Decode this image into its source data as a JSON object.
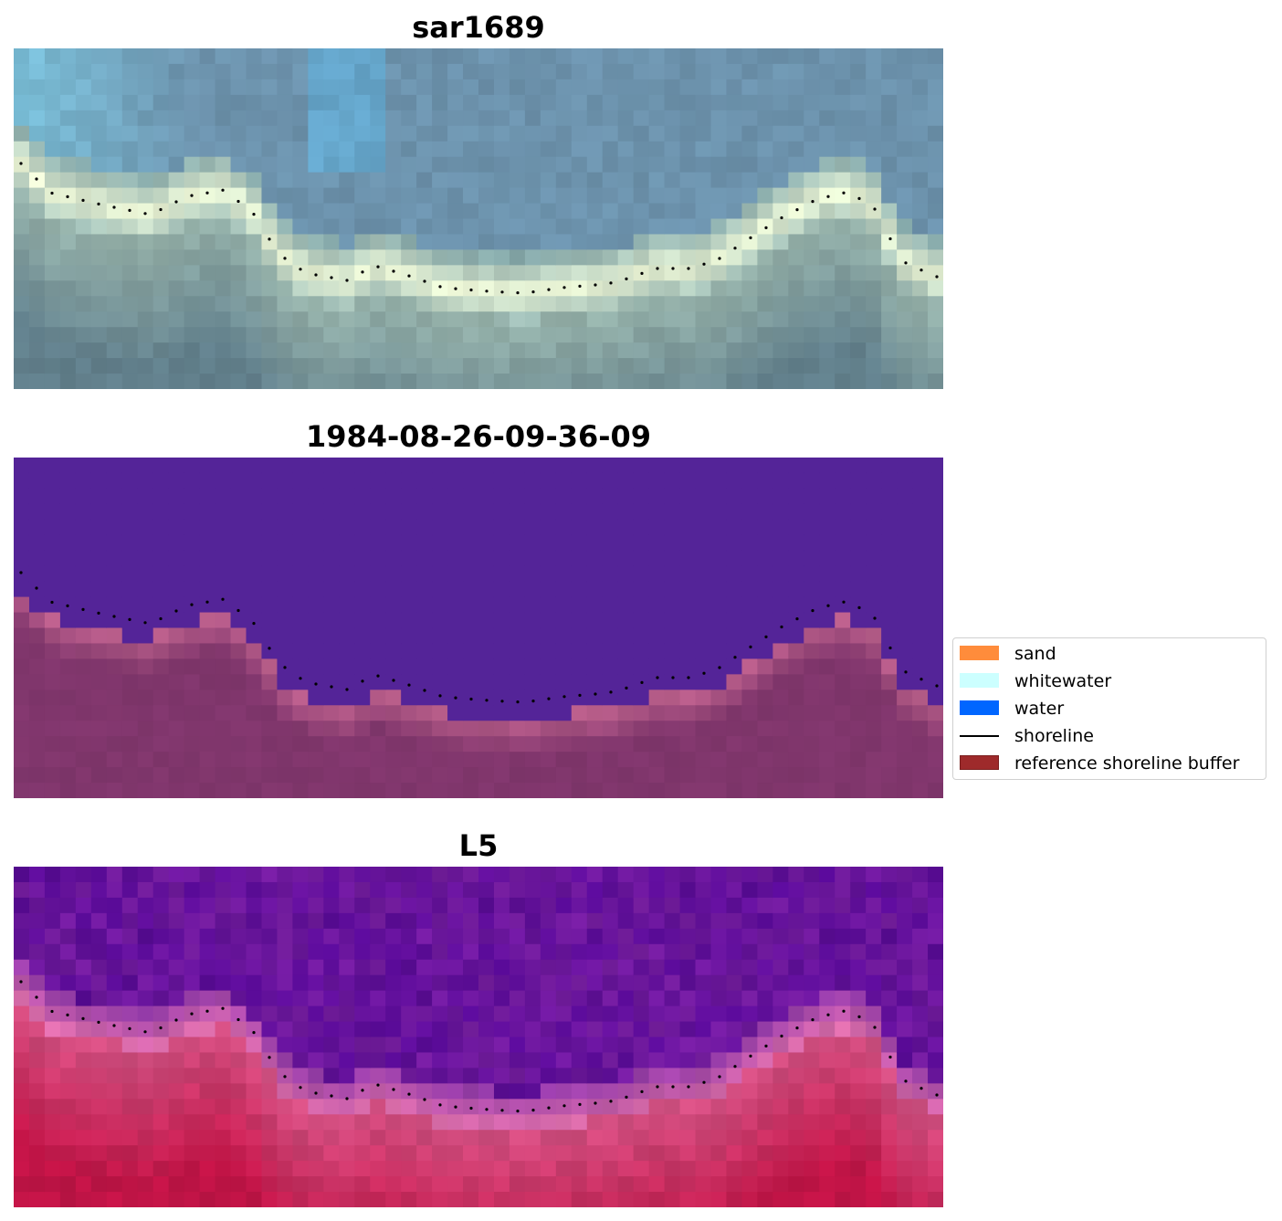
{
  "panels": [
    {
      "title": "sar1689",
      "style": "rgb"
    },
    {
      "title": "1984-08-26-09-36-09",
      "style": "classified"
    },
    {
      "title": "L5",
      "style": "index"
    }
  ],
  "legend": {
    "items": [
      {
        "label": "sand",
        "color": "#ff8c3b",
        "kind": "patch"
      },
      {
        "label": "whitewater",
        "color": "#ccffff",
        "kind": "patch"
      },
      {
        "label": "water",
        "color": "#0066ff",
        "kind": "patch"
      },
      {
        "label": "shoreline",
        "color": "#000000",
        "kind": "line"
      },
      {
        "label": "reference shoreline buffer",
        "color": "#9e2a2b",
        "kind": "patch",
        "edge": "#7a1e1e"
      }
    ]
  }
}
